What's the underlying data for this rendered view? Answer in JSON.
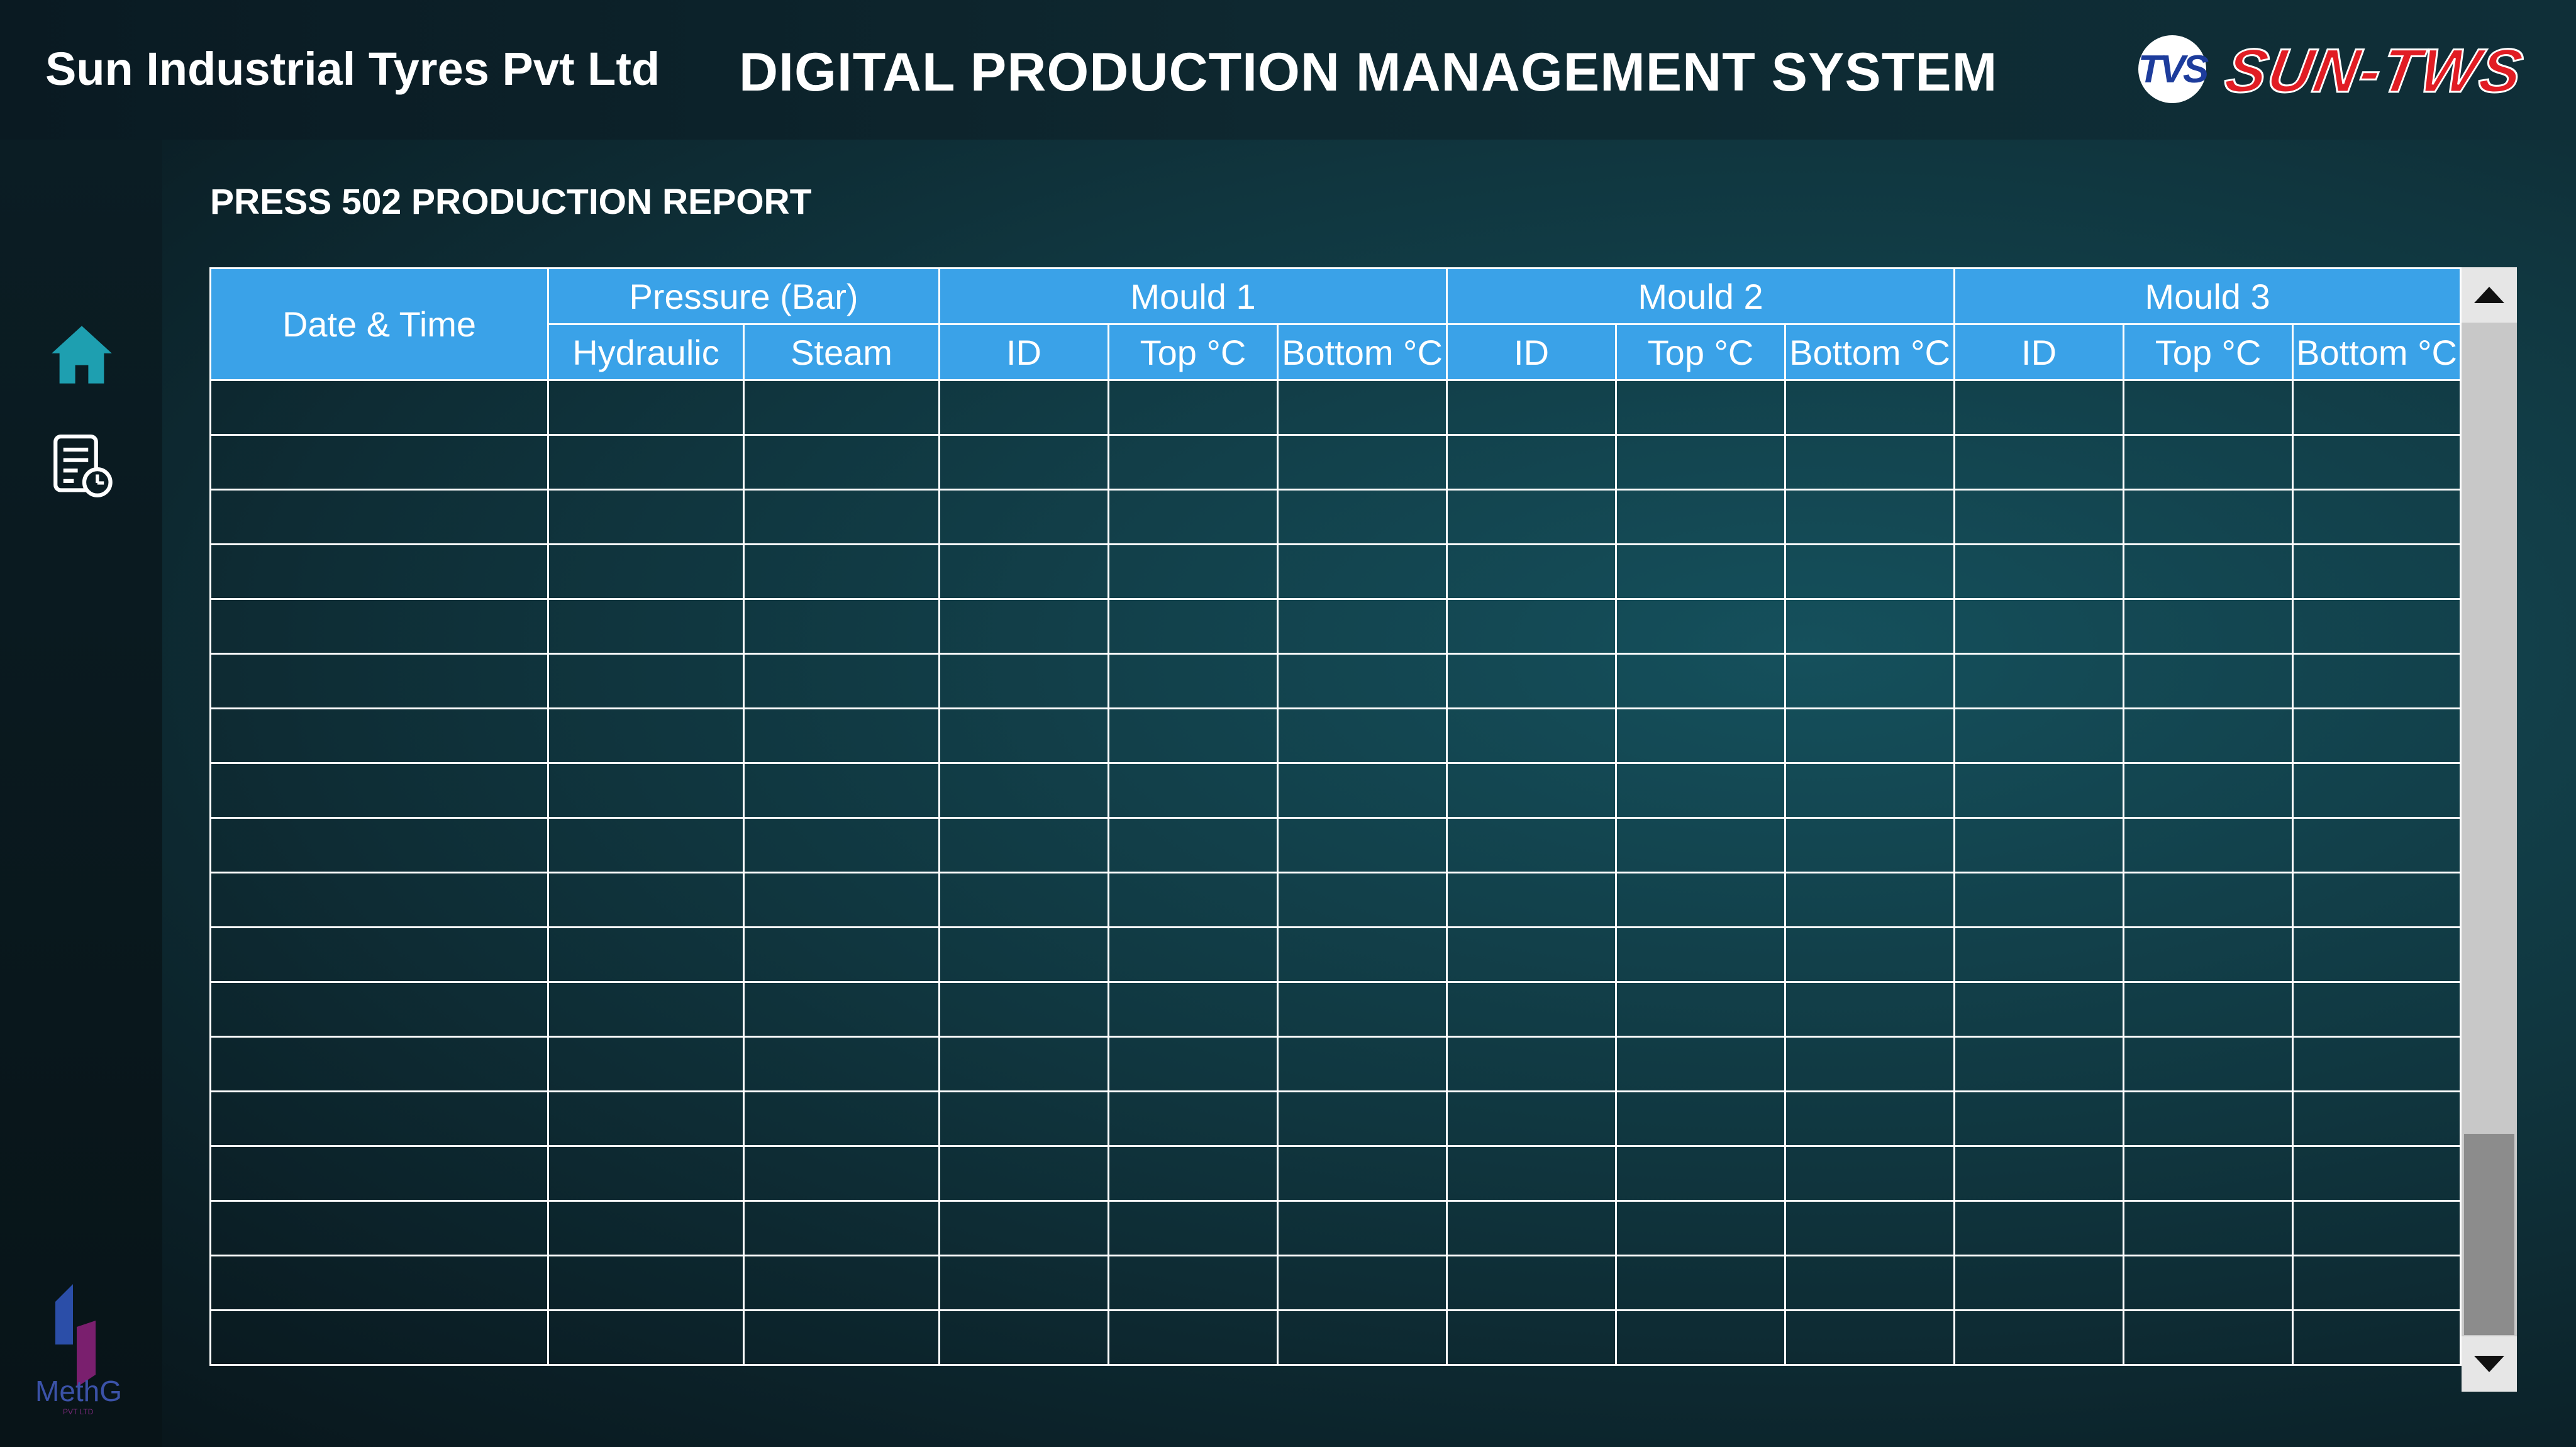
{
  "header": {
    "company": "Sun Industrial Tyres Pvt Ltd",
    "system_title": "DIGITAL PRODUCTION MANAGEMENT SYSTEM",
    "logo_tvs": "TVS",
    "logo_brand": "SUN-TWS"
  },
  "sidebar": {
    "items": [
      {
        "name": "home",
        "icon": "home-icon"
      },
      {
        "name": "report",
        "icon": "report-clock-icon"
      }
    ],
    "footer_logo": "MethG",
    "footer_logo_sub": "PVT LTD"
  },
  "report": {
    "title": "PRESS 502 PRODUCTION REPORT",
    "headers": {
      "date_time": "Date & Time",
      "pressure": "Pressure (Bar)",
      "hydraulic": "Hydraulic",
      "steam": "Steam",
      "mould1": "Mould 1",
      "mould2": "Mould 2",
      "mould3": "Mould 3",
      "id": "ID",
      "top": "Top °C",
      "bottom": "Bottom °C"
    },
    "row_count": 18,
    "rows": []
  },
  "colors": {
    "header_cell": "#3aa2e8",
    "home_icon": "#1e9fb0",
    "brand_red": "#e11d24"
  }
}
